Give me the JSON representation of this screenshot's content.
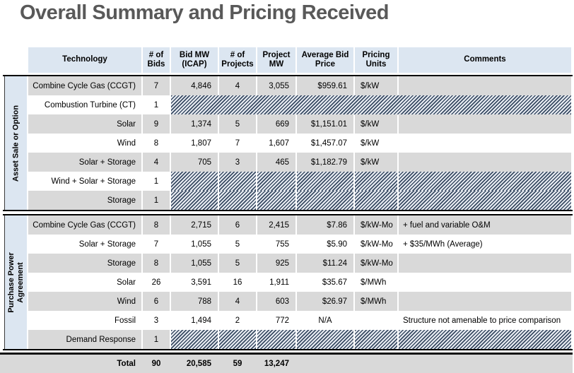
{
  "title": "Overall Summary and Pricing Received",
  "colors": {
    "header_blue": "#dce6f1",
    "row_gray": "#d9d9d9",
    "row_white": "#ffffff",
    "hatch_dark": "#394b63",
    "hatch_light": "#e9edf3",
    "title_gray": "#595959",
    "border_black": "#000000"
  },
  "table": {
    "columns": [
      "Technology",
      "# of Bids",
      "Bid MW (ICAP)",
      "# of Projects",
      "Project MW",
      "Average Bid Price",
      "Pricing Units",
      "Comments"
    ],
    "sections": [
      {
        "label": "Asset Sale or Option",
        "rows": [
          {
            "technology": "Combine Cycle Gas (CCGT)",
            "bids": "7",
            "bid_mw": "4,846",
            "projects": "4",
            "project_mw": "3,055",
            "avg_price": "$959.61",
            "units": "$/kW",
            "comments": ""
          },
          {
            "technology": "Combustion Turbine (CT)",
            "bids": "1",
            "hatch": "full"
          },
          {
            "technology": "Solar",
            "bids": "9",
            "bid_mw": "1,374",
            "projects": "5",
            "project_mw": "669",
            "avg_price": "$1,151.01",
            "units": "$/kW",
            "comments": ""
          },
          {
            "technology": "Wind",
            "bids": "8",
            "bid_mw": "1,807",
            "projects": "7",
            "project_mw": "1,607",
            "avg_price": "$1,457.07",
            "units": "$/kW",
            "comments": ""
          },
          {
            "technology": "Solar + Storage",
            "bids": "4",
            "bid_mw": "705",
            "projects": "3",
            "project_mw": "465",
            "avg_price": "$1,182.79",
            "units": "$/kW",
            "comments": ""
          },
          {
            "technology": "Wind + Solar + Storage",
            "bids": "1",
            "hatch": "cells"
          },
          {
            "technology": "Storage",
            "bids": "1",
            "hatch": "cells"
          }
        ]
      },
      {
        "label": "Purchase Power\nAgreement",
        "rows": [
          {
            "technology": "Combine Cycle Gas (CCGT)",
            "bids": "8",
            "bid_mw": "2,715",
            "projects": "6",
            "project_mw": "2,415",
            "avg_price": "$7.86",
            "units": "$/kW-Mo",
            "comments": "+ fuel and variable O&M"
          },
          {
            "technology": "Solar + Storage",
            "bids": "7",
            "bid_mw": "1,055",
            "projects": "5",
            "project_mw": "755",
            "avg_price": "$5.90",
            "units": "$/kW-Mo",
            "comments": "+ $35/MWh (Average)"
          },
          {
            "technology": "Storage",
            "bids": "8",
            "bid_mw": "1,055",
            "projects": "5",
            "project_mw": "925",
            "avg_price": "$11.24",
            "units": "$/kW-Mo",
            "comments": ""
          },
          {
            "technology": "Solar",
            "bids": "26",
            "bid_mw": "3,591",
            "projects": "16",
            "project_mw": "1,911",
            "avg_price": "$35.67",
            "units": "$/MWh",
            "comments": ""
          },
          {
            "technology": "Wind",
            "bids": "6",
            "bid_mw": "788",
            "projects": "4",
            "project_mw": "603",
            "avg_price": "$26.97",
            "units": "$/MWh",
            "comments": ""
          },
          {
            "technology": "Fossil",
            "bids": "3",
            "bid_mw": "1,494",
            "projects": "2",
            "project_mw": "772",
            "avg_price": "N/A",
            "units": "",
            "comments": "Structure not amenable to price comparison"
          },
          {
            "technology": "Demand Response",
            "bids": "1",
            "hatch": "cells"
          }
        ]
      }
    ],
    "total": {
      "label": "Total",
      "bids": "90",
      "bid_mw": "20,585",
      "projects": "59",
      "project_mw": "13,247"
    }
  }
}
